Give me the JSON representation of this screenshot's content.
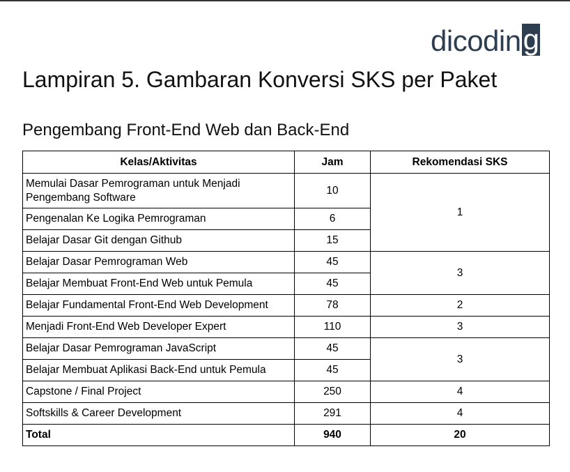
{
  "logo": {
    "text_main": "dicodin",
    "text_box": "g"
  },
  "title": "Lampiran 5. Gambaran Konversi SKS per Paket",
  "subtitle": "Pengembang Front-End Web dan Back-End",
  "table": {
    "headers": [
      "Kelas/Aktivitas",
      "Jam",
      "Rekomendasi SKS"
    ],
    "rows": [
      {
        "kelas": "Memulai Dasar Pemrograman untuk Menjadi Pengembang Software",
        "jam": "10"
      },
      {
        "kelas": "Pengenalan Ke Logika Pemrograman",
        "jam": "6"
      },
      {
        "kelas": "Belajar Dasar Git dengan Github",
        "jam": "15"
      },
      {
        "kelas": "Belajar Dasar Pemrograman Web",
        "jam": "45"
      },
      {
        "kelas": "Belajar Membuat Front-End Web untuk Pemula",
        "jam": "45"
      },
      {
        "kelas": "Belajar Fundamental Front-End Web Development",
        "jam": "78"
      },
      {
        "kelas": "Menjadi Front-End Web Developer Expert",
        "jam": "110"
      },
      {
        "kelas": "Belajar Dasar Pemrograman JavaScript",
        "jam": "45"
      },
      {
        "kelas": "Belajar Membuat Aplikasi Back-End untuk Pemula",
        "jam": "45"
      },
      {
        "kelas": "Capstone / Final Project",
        "jam": "250"
      },
      {
        "kelas": "Softskills & Career Development",
        "jam": "291"
      }
    ],
    "sks_groups": [
      "1",
      "3",
      "2",
      "3",
      "3",
      "4",
      "4"
    ],
    "total": {
      "label": "Total",
      "jam": "940",
      "sks": "20"
    }
  }
}
